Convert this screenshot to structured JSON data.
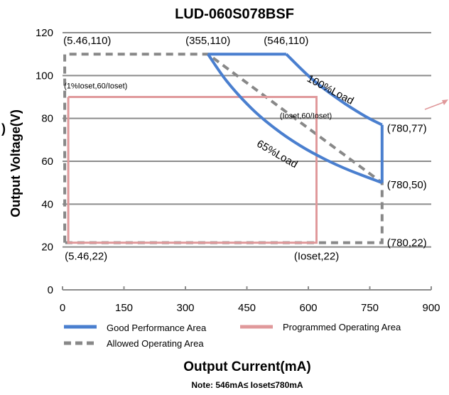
{
  "chart_data": {
    "type": "line",
    "title": "LUD-060S078BSF",
    "xlabel": "Output Current(mA)",
    "ylabel": "Output Voltage(V)",
    "ylabel_prefix": ")",
    "xlim": [
      0,
      900
    ],
    "ylim": [
      0,
      120
    ],
    "xticks": [
      0,
      150,
      300,
      450,
      600,
      750,
      900
    ],
    "yticks": [
      0,
      20,
      40,
      60,
      80,
      100,
      120
    ],
    "grid": true,
    "legend_position": "bottom",
    "note": "Note: 546mA≤ Ioset≤780mA",
    "series": [
      {
        "name": "Good Performance Area",
        "color": "#4a7fcf",
        "style": "solid",
        "outer_segment": [
          [
            355,
            110
          ],
          [
            546,
            110
          ]
        ],
        "curve_100_load": [
          [
            546,
            110
          ],
          [
            610,
            98.2
          ],
          [
            680,
            88.1
          ],
          [
            740,
            80.9
          ],
          [
            780,
            77
          ]
        ],
        "right_edge": [
          [
            780,
            77
          ],
          [
            780,
            50
          ]
        ],
        "curve_65_load": [
          [
            355,
            110
          ],
          [
            400,
            97.6
          ],
          [
            460,
            84.9
          ],
          [
            520,
            75.1
          ],
          [
            580,
            67.3
          ],
          [
            640,
            61
          ],
          [
            700,
            55.8
          ],
          [
            780,
            50
          ]
        ]
      },
      {
        "name": "Programmed Operating Area",
        "color": "#e0999b",
        "style": "solid",
        "points": [
          [
            14,
            90
          ],
          [
            620,
            90
          ],
          [
            620,
            22
          ],
          [
            14,
            22
          ],
          [
            14,
            90
          ]
        ]
      },
      {
        "name": "Allowed Operating Area",
        "color": "#888888",
        "style": "dashed",
        "points": [
          [
            5.46,
            22
          ],
          [
            5.46,
            110
          ],
          [
            355,
            110
          ],
          [
            780,
            50
          ],
          [
            780,
            22
          ],
          [
            5.46,
            22
          ]
        ]
      }
    ],
    "annotations": [
      {
        "text": "(5.46,110)",
        "x": 5.46,
        "y": 110
      },
      {
        "text": "(355,110)",
        "x": 355,
        "y": 110
      },
      {
        "text": "(546,110)",
        "x": 546,
        "y": 110
      },
      {
        "text": "(1%Ioset,60/Ioset)",
        "x": 14,
        "y": 90
      },
      {
        "text": "100%Load",
        "x": 650,
        "y": 92
      },
      {
        "text": "(Ioset,60/Ioset)",
        "x": 620,
        "y": 90
      },
      {
        "text": "(780,77)",
        "x": 780,
        "y": 77
      },
      {
        "text": "65%Load",
        "x": 520,
        "y": 62
      },
      {
        "text": "(780,50)",
        "x": 780,
        "y": 50
      },
      {
        "text": "(780,22)",
        "x": 780,
        "y": 22
      },
      {
        "text": "(5.46,22)",
        "x": 5.46,
        "y": 22
      },
      {
        "text": "(Ioset,22)",
        "x": 620,
        "y": 22
      }
    ]
  }
}
